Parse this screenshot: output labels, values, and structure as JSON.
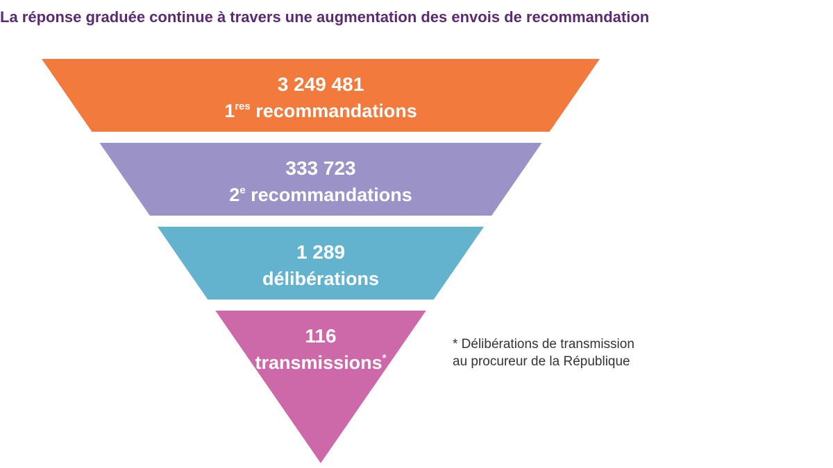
{
  "title": "La réponse graduée continue à travers une augmentation des envois de recommandation",
  "chart_data": {
    "type": "funnel",
    "title": "La réponse graduée continue à travers une augmentation des envois de recommandation",
    "stages": [
      {
        "value": 3249481,
        "value_label": "3 249 481",
        "label_base": "1",
        "label_sup": "res",
        "label_rest": " recommandations",
        "color": "#f27a3c"
      },
      {
        "value": 333723,
        "value_label": "333 723",
        "label_base": "2",
        "label_sup": "e",
        "label_rest": " recommandations",
        "color": "#9b92c7"
      },
      {
        "value": 1289,
        "value_label": "1 289",
        "label_base": "délibérations",
        "label_sup": "",
        "label_rest": "",
        "color": "#63b3cf"
      },
      {
        "value": 116,
        "value_label": "116",
        "label_base": "transmissions",
        "label_sup": "*",
        "label_rest": "",
        "color": "#cd68a9"
      }
    ],
    "footnote": [
      "* Délibérations de transmission",
      "au procureur de la République"
    ]
  }
}
